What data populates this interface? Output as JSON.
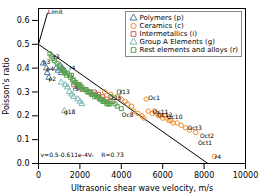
{
  "chart_data": {
    "type": "scatter",
    "xlabel": "Ultrasonic shear wave velocity, m/s",
    "ylabel": "Poisson's ratio",
    "xlim": [
      0,
      10000
    ],
    "ylim": [
      0.0,
      0.65
    ],
    "xticks": [
      0,
      2000,
      4000,
      6000,
      8000,
      10000
    ],
    "yticks": [
      {
        "value": 0.0,
        "label": "0.0"
      },
      0.1,
      0.2,
      0.3,
      0.4,
      0.5,
      0.6
    ],
    "legend": "upper right",
    "series": [
      {
        "type": "line",
        "color": "black",
        "values": [
          [
            0,
            0.5
          ],
          [
            8182,
            0.0
          ]
        ]
      },
      {
        "type": "line",
        "color": "black",
        "values": [
          [
            0,
            0.5
          ],
          [
            430,
            0.63
          ]
        ]
      },
      {
        "name": "Polymers (p)",
        "marker": "triangle",
        "values": [
          [
            230,
            0.42
          ],
          [
            380,
            0.4
          ],
          [
            420,
            0.38
          ],
          [
            500,
            0.36
          ],
          [
            850,
            0.4
          ],
          [
            950,
            0.39
          ],
          [
            1050,
            0.41
          ],
          [
            1150,
            0.4
          ],
          [
            1100,
            0.38
          ],
          [
            1250,
            0.39
          ]
        ]
      },
      {
        "name": "Ceramics (c)",
        "marker": "circle",
        "values": [
          [
            3200,
            0.3
          ],
          [
            3500,
            0.29
          ],
          [
            3800,
            0.28
          ],
          [
            4000,
            0.27
          ],
          [
            4200,
            0.26
          ],
          [
            4300,
            0.25
          ],
          [
            4500,
            0.24
          ],
          [
            4600,
            0.22
          ],
          [
            4800,
            0.21
          ],
          [
            5000,
            0.2
          ],
          [
            5100,
            0.19
          ],
          [
            5300,
            0.22
          ],
          [
            5500,
            0.21
          ],
          [
            5600,
            0.22
          ],
          [
            5700,
            0.21
          ],
          [
            5800,
            0.2
          ],
          [
            5900,
            0.2
          ],
          [
            6000,
            0.19
          ],
          [
            6100,
            0.2
          ],
          [
            6200,
            0.19
          ],
          [
            6300,
            0.18
          ],
          [
            6400,
            0.18
          ],
          [
            6500,
            0.17
          ],
          [
            6700,
            0.17
          ],
          [
            6900,
            0.16
          ],
          [
            7100,
            0.15
          ],
          [
            7300,
            0.14
          ],
          [
            7600,
            0.13
          ],
          [
            5200,
            0.27
          ],
          [
            8500,
            0.03
          ]
        ]
      },
      {
        "name": "Intermetallics (i)",
        "marker": "square",
        "values": [
          [
            1700,
            0.33
          ],
          [
            1900,
            0.32
          ],
          [
            2100,
            0.31
          ],
          [
            2300,
            0.31
          ],
          [
            2500,
            0.3
          ],
          [
            2700,
            0.3
          ],
          [
            2900,
            0.29
          ],
          [
            3100,
            0.28
          ],
          [
            3300,
            0.27
          ],
          [
            3500,
            0.26
          ]
        ]
      },
      {
        "name": "Group A Elements (g)",
        "marker": "triangle",
        "values": [
          [
            1100,
            0.34
          ],
          [
            1300,
            0.33
          ],
          [
            1400,
            0.32
          ],
          [
            1500,
            0.3
          ],
          [
            1600,
            0.29
          ],
          [
            1700,
            0.28
          ],
          [
            1900,
            0.27
          ],
          [
            2000,
            0.26
          ],
          [
            2100,
            0.25
          ],
          [
            1250,
            0.22
          ]
        ]
      },
      {
        "name": "Rest elements and alloys (r)",
        "marker": "square",
        "values": [
          [
            550,
            0.46
          ],
          [
            620,
            0.45
          ],
          [
            700,
            0.44
          ],
          [
            780,
            0.43
          ],
          [
            900,
            0.42
          ],
          [
            1000,
            0.41
          ],
          [
            1050,
            0.4
          ],
          [
            1150,
            0.39
          ],
          [
            1200,
            0.39
          ],
          [
            1250,
            0.38
          ],
          [
            1300,
            0.38
          ],
          [
            1350,
            0.37
          ],
          [
            1400,
            0.38
          ],
          [
            1500,
            0.37
          ],
          [
            1550,
            0.36
          ],
          [
            1600,
            0.37
          ],
          [
            1650,
            0.35
          ],
          [
            1700,
            0.35
          ],
          [
            1750,
            0.34
          ],
          [
            1800,
            0.34
          ],
          [
            1850,
            0.33
          ],
          [
            1900,
            0.33
          ],
          [
            1950,
            0.33
          ],
          [
            2000,
            0.33
          ],
          [
            2050,
            0.32
          ],
          [
            2100,
            0.32
          ],
          [
            2150,
            0.31
          ],
          [
            2200,
            0.31
          ],
          [
            2250,
            0.31
          ],
          [
            2300,
            0.31
          ],
          [
            2350,
            0.3
          ],
          [
            2400,
            0.3
          ],
          [
            2450,
            0.3
          ],
          [
            2500,
            0.3
          ],
          [
            2550,
            0.29
          ],
          [
            2600,
            0.29
          ],
          [
            2650,
            0.29
          ],
          [
            2700,
            0.28
          ],
          [
            2750,
            0.29
          ],
          [
            2800,
            0.28
          ],
          [
            2850,
            0.28
          ],
          [
            2900,
            0.28
          ],
          [
            2950,
            0.27
          ],
          [
            3000,
            0.27
          ],
          [
            3050,
            0.27
          ],
          [
            3100,
            0.26
          ],
          [
            3150,
            0.26
          ],
          [
            3200,
            0.26
          ],
          [
            3250,
            0.26
          ],
          [
            3300,
            0.25
          ],
          [
            3350,
            0.25
          ],
          [
            3400,
            0.25
          ],
          [
            3450,
            0.25
          ],
          [
            3500,
            0.28
          ],
          [
            3600,
            0.26
          ],
          [
            3700,
            0.25
          ],
          [
            3800,
            0.24
          ],
          [
            3900,
            0.3
          ],
          [
            4000,
            0.23
          ]
        ]
      }
    ],
    "annotations": [
      {
        "text": "Limit",
        "x": 450,
        "y": 0.635
      },
      {
        "text": "r3",
        "x": 720,
        "y": 0.445
      },
      {
        "text": "r4",
        "x": 1480,
        "y": 0.4
      },
      {
        "text": "r5",
        "x": 1650,
        "y": 0.31
      },
      {
        "text": "r13",
        "x": 3920,
        "y": 0.3
      },
      {
        "text": "r25",
        "x": 3520,
        "y": 0.275
      },
      {
        "text": "p3",
        "x": 200,
        "y": 0.425
      },
      {
        "text": "p4",
        "x": 370,
        "y": 0.395
      },
      {
        "text": "p2",
        "x": 480,
        "y": 0.355
      },
      {
        "text": "g18",
        "x": 1230,
        "y": 0.215
      },
      {
        "text": "Oc8",
        "x": 4020,
        "y": 0.205
      },
      {
        "text": "Oc11",
        "x": 5520,
        "y": 0.215
      },
      {
        "text": "Oc12",
        "x": 5720,
        "y": 0.205
      },
      {
        "text": "Oct1",
        "x": 7700,
        "y": 0.085
      },
      {
        "text": "Oct2",
        "x": 7800,
        "y": 0.115
      },
      {
        "text": "Oct3",
        "x": 7200,
        "y": 0.15
      },
      {
        "text": "Oc1",
        "x": 5300,
        "y": 0.275
      },
      {
        "text": "Oc10",
        "x": 6200,
        "y": 0.195
      },
      {
        "text": "r4",
        "x": 8520,
        "y": 0.025
      },
      {
        "text": "v=0.5-0.611e-4Vₜ    R=0.73",
        "x": 100,
        "y": 0.035
      }
    ]
  }
}
